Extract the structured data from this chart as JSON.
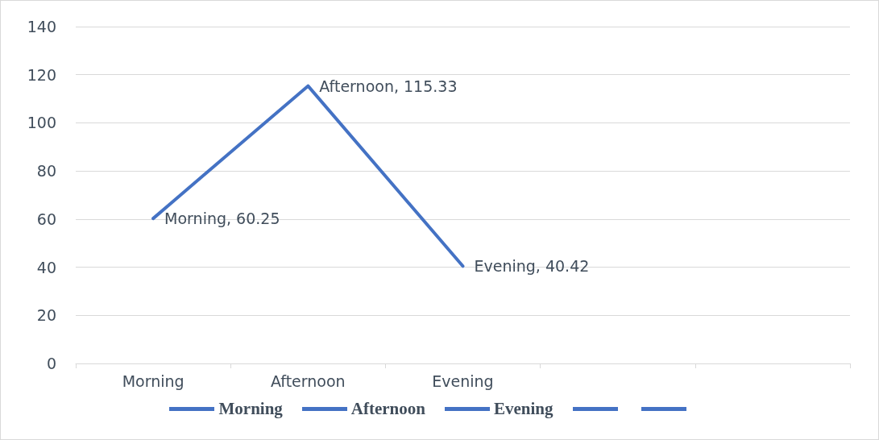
{
  "chart_data": {
    "type": "line",
    "categories": [
      "Morning",
      "Afternoon",
      "Evening",
      null,
      null
    ],
    "series": [
      {
        "color": "#4472c4",
        "values": [
          60.25,
          115.33,
          40.42,
          null,
          null
        ],
        "value_labels": [
          "Morning, 60.25",
          "Afternoon, 115.33",
          "Evening, 40.42",
          null,
          null
        ]
      }
    ],
    "ylim": [
      0,
      140
    ],
    "yticks": [
      0,
      20,
      40,
      60,
      80,
      100,
      120,
      140
    ],
    "grid": "y",
    "marker": "none",
    "line_style": "solid"
  }
}
